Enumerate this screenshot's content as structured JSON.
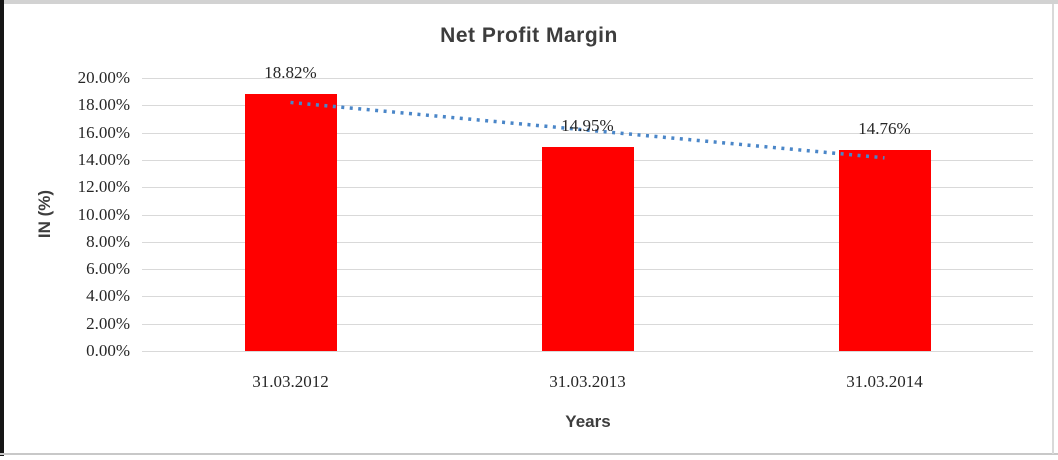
{
  "chart_data": {
    "type": "bar",
    "title": "Net Profit Margin",
    "categories": [
      "31.03.2012",
      "31.03.2013",
      "31.03.2014"
    ],
    "values": [
      18.82,
      14.95,
      14.76
    ],
    "data_labels": [
      "18.82%",
      "14.95%",
      "14.76%"
    ],
    "xlabel": "Years",
    "ylabel": "IN (%)",
    "ylim": [
      0,
      20
    ],
    "ytick_step": 2,
    "ytick_labels": [
      "0.00%",
      "2.00%",
      "4.00%",
      "6.00%",
      "8.00%",
      "10.00%",
      "12.00%",
      "14.00%",
      "16.00%",
      "18.00%",
      "20.00%"
    ],
    "grid": true,
    "legend": "none",
    "bar_color": "#FF0000",
    "gridline_color": "#D9D9D9",
    "trendline": {
      "type": "linear",
      "style": "dotted",
      "color": "#4A86C8",
      "start_value": 18.21,
      "end_value": 14.15
    }
  }
}
